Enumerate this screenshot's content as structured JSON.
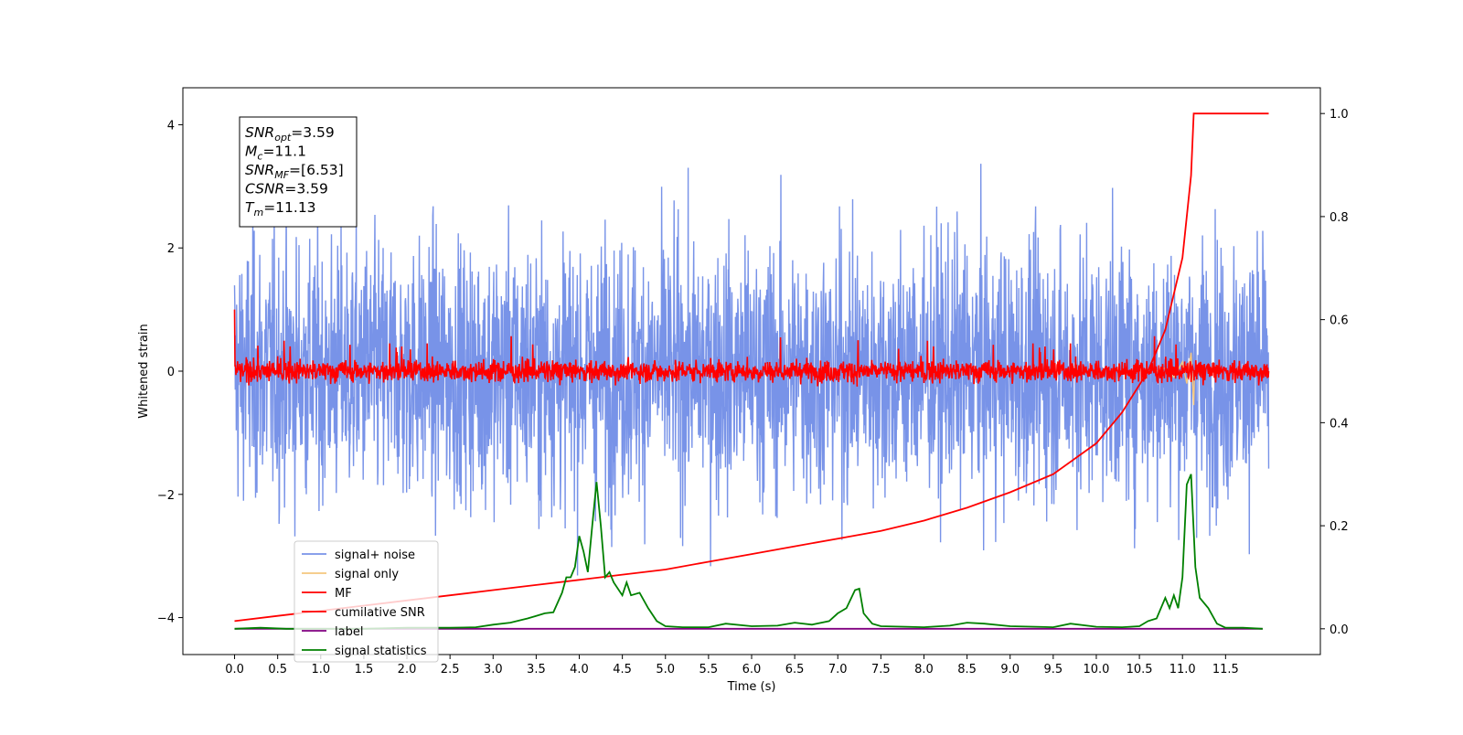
{
  "figure": {
    "xlabel": "Time (s)",
    "ylabel": "Whitened strain"
  },
  "info_box": {
    "lines": [
      {
        "main": "SNR",
        "sub": "opt",
        "value": "=3.59"
      },
      {
        "main": "M",
        "sub": "c",
        "value": "=11.1"
      },
      {
        "main": "SNR",
        "sub": "MF",
        "value": "=[6.53]"
      },
      {
        "main": "CSNR",
        "sub": "",
        "value": "=3.59"
      },
      {
        "main": "T",
        "sub": "m",
        "value": "=11.13"
      }
    ]
  },
  "legend": [
    {
      "label": "signal+ noise",
      "color": "#7893e8"
    },
    {
      "label": "signal only",
      "color": "#f5c77e"
    },
    {
      "label": "MF",
      "color": "#ff0000"
    },
    {
      "label": "cumilative SNR",
      "color": "#ff0000"
    },
    {
      "label": "label",
      "color": "#800080"
    },
    {
      "label": "signal statistics",
      "color": "#008000"
    }
  ],
  "chart_data": {
    "type": "line",
    "xlabel": "Time (s)",
    "ylabel": "Whitened strain",
    "xlim": [
      -0.6,
      12.6
    ],
    "ylim": [
      -4.6,
      4.6
    ],
    "y2lim": [
      -0.05,
      1.05
    ],
    "xticks": [
      "0.0",
      "0.5",
      "1.0",
      "1.5",
      "2.0",
      "2.5",
      "3.0",
      "3.5",
      "4.0",
      "4.5",
      "5.0",
      "5.5",
      "6.0",
      "6.5",
      "7.0",
      "7.5",
      "8.0",
      "8.5",
      "9.0",
      "9.5",
      "10.0",
      "10.5",
      "11.0",
      "11.5"
    ],
    "yticks": [
      "−4",
      "−2",
      "0",
      "2",
      "4"
    ],
    "y2ticks": [
      "0.0",
      "0.2",
      "0.4",
      "0.6",
      "0.8",
      "1.0"
    ],
    "grid": false,
    "legend_position": "lower-left",
    "series": [
      {
        "name": "signal+ noise",
        "axis": "left",
        "color": "#7893e8",
        "description_range": [
          -3.9,
          4.2
        ],
        "x_range": [
          0.0,
          12.0
        ]
      },
      {
        "name": "signal only",
        "axis": "left",
        "color": "#f5c77e",
        "x": [
          10.7,
          10.8,
          10.9,
          11.0,
          11.05,
          11.1,
          11.13,
          11.14
        ],
        "y": [
          0.0,
          0.05,
          -0.1,
          0.15,
          -0.2,
          0.3,
          -0.55,
          0.0
        ]
      },
      {
        "name": "MF",
        "axis": "left",
        "color": "#ff0000",
        "x_range": [
          0.0,
          12.0
        ],
        "description_range": [
          -0.25,
          0.65
        ],
        "start_value": 1.0
      },
      {
        "name": "cumilative SNR",
        "axis": "right",
        "color": "#ff0000",
        "x": [
          0.0,
          0.5,
          1.0,
          1.5,
          2.0,
          2.5,
          3.0,
          3.5,
          4.0,
          4.5,
          5.0,
          5.5,
          6.0,
          6.5,
          7.0,
          7.5,
          8.0,
          8.5,
          9.0,
          9.5,
          10.0,
          10.3,
          10.6,
          10.8,
          11.0,
          11.1,
          11.13,
          11.2,
          11.5,
          12.0
        ],
        "y": [
          0.015,
          0.025,
          0.035,
          0.045,
          0.055,
          0.065,
          0.075,
          0.085,
          0.095,
          0.105,
          0.115,
          0.13,
          0.145,
          0.16,
          0.175,
          0.19,
          0.21,
          0.235,
          0.265,
          0.3,
          0.36,
          0.42,
          0.5,
          0.58,
          0.72,
          0.88,
          1.0,
          1.0,
          1.0,
          1.0
        ]
      },
      {
        "name": "label",
        "axis": "right",
        "color": "#800080",
        "x": [
          0.0,
          11.93
        ],
        "y": [
          0.0,
          0.0
        ]
      },
      {
        "name": "signal statistics",
        "axis": "right",
        "color": "#008000",
        "x": [
          0.0,
          0.3,
          0.6,
          1.0,
          1.5,
          2.0,
          2.5,
          2.8,
          3.0,
          3.2,
          3.4,
          3.5,
          3.6,
          3.7,
          3.8,
          3.85,
          3.9,
          3.95,
          4.0,
          4.05,
          4.1,
          4.15,
          4.2,
          4.25,
          4.3,
          4.35,
          4.4,
          4.5,
          4.55,
          4.6,
          4.7,
          4.8,
          4.9,
          5.0,
          5.2,
          5.5,
          5.7,
          6.0,
          6.3,
          6.5,
          6.7,
          6.9,
          7.0,
          7.1,
          7.2,
          7.25,
          7.3,
          7.4,
          7.5,
          7.8,
          8.0,
          8.3,
          8.5,
          8.7,
          9.0,
          9.3,
          9.5,
          9.7,
          10.0,
          10.3,
          10.5,
          10.6,
          10.7,
          10.8,
          10.85,
          10.9,
          10.95,
          11.0,
          11.05,
          11.1,
          11.15,
          11.2,
          11.3,
          11.4,
          11.5,
          11.7,
          11.93
        ],
        "y": [
          0.0,
          0.002,
          0.0,
          0.0,
          0.0,
          0.002,
          0.002,
          0.003,
          0.008,
          0.012,
          0.02,
          0.025,
          0.03,
          0.032,
          0.07,
          0.1,
          0.1,
          0.12,
          0.18,
          0.15,
          0.11,
          0.2,
          0.285,
          0.2,
          0.1,
          0.11,
          0.09,
          0.065,
          0.09,
          0.065,
          0.07,
          0.04,
          0.015,
          0.005,
          0.003,
          0.003,
          0.01,
          0.005,
          0.006,
          0.012,
          0.008,
          0.015,
          0.03,
          0.04,
          0.075,
          0.078,
          0.03,
          0.01,
          0.005,
          0.004,
          0.003,
          0.006,
          0.012,
          0.01,
          0.005,
          0.004,
          0.003,
          0.01,
          0.004,
          0.003,
          0.005,
          0.015,
          0.02,
          0.06,
          0.04,
          0.065,
          0.04,
          0.1,
          0.28,
          0.3,
          0.12,
          0.06,
          0.04,
          0.01,
          0.002,
          0.002,
          0.0
        ]
      }
    ]
  }
}
